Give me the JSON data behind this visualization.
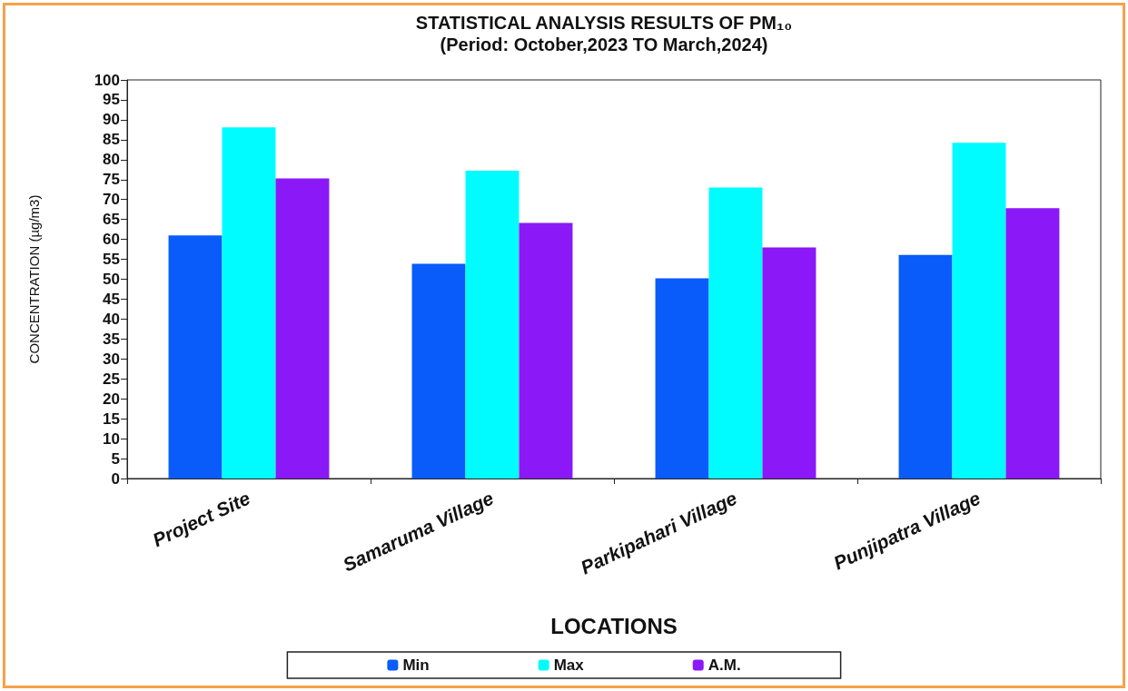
{
  "chart_data": {
    "type": "bar",
    "title": "STATISTICAL ANALYSIS RESULTS OF PM₁₀",
    "subtitle": "(Period: October,2023 TO March,2024)",
    "xlabel": "LOCATIONS",
    "ylabel": "CONCENTRATION (µg/m3)",
    "categories": [
      "Project Site",
      "Samaruma Village",
      "Parkipahari Village",
      "Punjipatra Village"
    ],
    "series": [
      {
        "name": "Min",
        "color": "#0a5cfa",
        "values": [
          61,
          53.9,
          50.2,
          56.1
        ]
      },
      {
        "name": "Max",
        "color": "#00fcff",
        "values": [
          88.1,
          77.2,
          73,
          84.2
        ]
      },
      {
        "name": "A.M.",
        "color": "#8a18f7",
        "values": [
          75.3,
          64.1,
          58,
          67.8
        ]
      }
    ],
    "ylim": [
      0,
      100
    ],
    "yticks": [
      0,
      5,
      10,
      15,
      20,
      25,
      30,
      35,
      40,
      45,
      50,
      55,
      60,
      65,
      70,
      75,
      80,
      85,
      90,
      95,
      100
    ],
    "grid": false,
    "legend": "bottom"
  }
}
